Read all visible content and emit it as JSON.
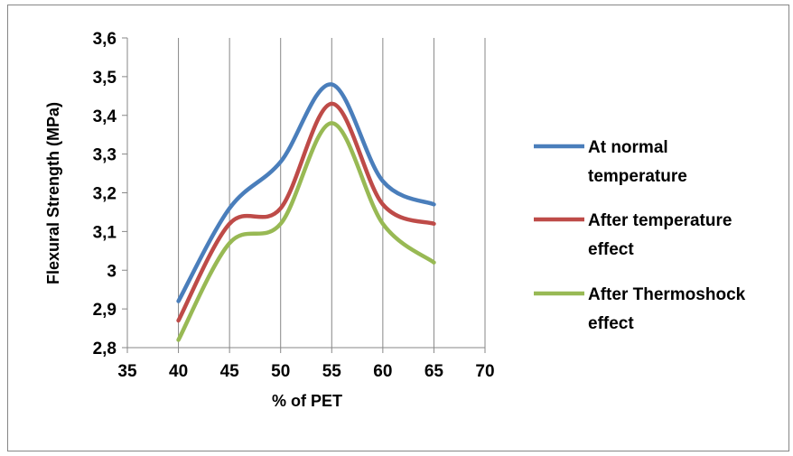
{
  "chart_data": {
    "type": "line",
    "smooth": true,
    "xlabel": "% of PET",
    "ylabel": "Flexural Strength (MPa)",
    "xlim": [
      35,
      70
    ],
    "ylim": [
      2.8,
      3.6
    ],
    "x_ticks": [
      "35",
      "40",
      "45",
      "50",
      "55",
      "60",
      "65",
      "70"
    ],
    "y_ticks": [
      "2,8",
      "2,9",
      "3",
      "3,1",
      "3,2",
      "3,3",
      "3,4",
      "3,5",
      "3,6"
    ],
    "x": [
      40,
      45,
      50,
      55,
      60,
      65
    ],
    "grid": {
      "vertical": true,
      "horizontal": false
    },
    "legend_position": "right",
    "series": [
      {
        "name_lines": [
          "At normal",
          "temperature"
        ],
        "color": "#4a7ebb",
        "values": [
          2.92,
          3.16,
          3.28,
          3.48,
          3.23,
          3.17
        ]
      },
      {
        "name_lines": [
          "After temperature",
          "effect"
        ],
        "color": "#be4b48",
        "values": [
          2.87,
          3.12,
          3.16,
          3.43,
          3.17,
          3.12
        ]
      },
      {
        "name_lines": [
          "After Thermoshock",
          "effect"
        ],
        "color": "#98b954",
        "values": [
          2.82,
          3.07,
          3.12,
          3.38,
          3.12,
          3.02
        ]
      }
    ]
  }
}
